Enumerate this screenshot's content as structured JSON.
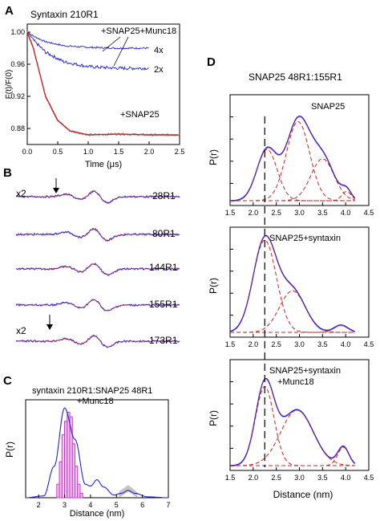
{
  "panels": {
    "A": {
      "letter": "A",
      "title": "Syntaxin 210R1",
      "ylabel": "F(t)/F(0)",
      "xlabel": "Time (μs)",
      "xticks": [
        "0.0",
        "0.5",
        "1.0",
        "1.5",
        "2.0",
        "2.5"
      ],
      "yticks": [
        "0.88",
        "0.92",
        "0.96",
        "1.00"
      ],
      "annotations": [
        "+SNAP25+Munc18",
        "4x",
        "2x",
        "+SNAP25"
      ]
    },
    "B": {
      "letter": "B",
      "labels": [
        "28R1",
        "80R1",
        "144R1",
        "155R1",
        "173R1"
      ],
      "scale_labels": [
        "x2",
        "x2"
      ]
    },
    "C": {
      "letter": "C",
      "title_line1": "syntaxin 210R1:SNAP25 48R1",
      "title_line2": "+Munc18",
      "ylabel": "P(r)",
      "xlabel": "Distance (nm)",
      "xticks": [
        "2",
        "3",
        "4",
        "5",
        "6",
        "7"
      ]
    },
    "D": {
      "letter": "D",
      "title": "SNAP25 48R1:155R1",
      "ylabel": "P(r)",
      "xlabel": "Distance (nm)",
      "xticks": [
        "1.5",
        "2.0",
        "2.5",
        "3.0",
        "3.5",
        "4.0",
        "4.5"
      ],
      "subpanel_labels": [
        "SNAP25",
        "SNAP25+syntaxin",
        "SNAP25+syntaxin",
        "+Munc18"
      ]
    }
  },
  "colors": {
    "fit_blue": "#2222dd",
    "gauss_red": "#cc2222",
    "data_gray": "#888888",
    "hist_magenta": "#cc33cc",
    "hist_fill": "#f3c6f3"
  },
  "chart_data": [
    {
      "type": "line",
      "panel": "A",
      "title": "Syntaxin 210R1",
      "xlabel": "Time (μs)",
      "ylabel": "F(t)/F(0)",
      "xlim": [
        0,
        2.5
      ],
      "ylim": [
        0.86,
        1.01
      ],
      "series": [
        {
          "name": "+SNAP25+Munc18 4x",
          "x": [
            0,
            0.1,
            0.3,
            0.6,
            1.0,
            1.5,
            2.0
          ],
          "y": [
            1.0,
            0.995,
            0.988,
            0.983,
            0.981,
            0.98,
            0.98
          ]
        },
        {
          "name": "+SNAP25+Munc18 2x",
          "x": [
            0,
            0.1,
            0.3,
            0.6,
            1.0,
            1.5,
            2.0
          ],
          "y": [
            1.0,
            0.99,
            0.975,
            0.963,
            0.957,
            0.955,
            0.955
          ]
        },
        {
          "name": "+SNAP25",
          "x": [
            0,
            0.1,
            0.2,
            0.3,
            0.5,
            0.7,
            1.0,
            1.5,
            2.0,
            2.5
          ],
          "y": [
            1.0,
            0.98,
            0.95,
            0.92,
            0.89,
            0.877,
            0.872,
            0.873,
            0.872,
            0.872
          ]
        }
      ]
    },
    {
      "type": "line",
      "panel": "B",
      "series": [
        {
          "name": "28R1"
        },
        {
          "name": "80R1"
        },
        {
          "name": "144R1"
        },
        {
          "name": "155R1"
        },
        {
          "name": "173R1"
        }
      ]
    },
    {
      "type": "bar",
      "panel": "C",
      "title": "syntaxin 210R1:SNAP25 48R1 +Munc18",
      "xlabel": "Distance (nm)",
      "ylabel": "P(r)",
      "xlim": [
        1.5,
        7
      ],
      "categories": [
        2.75,
        2.85,
        2.95,
        3.05,
        3.15,
        3.25,
        3.35,
        3.45,
        3.55,
        3.65
      ],
      "values": [
        0.15,
        0.4,
        0.7,
        0.85,
        0.95,
        0.9,
        0.6,
        0.35,
        0.15,
        0.05
      ],
      "series": [
        {
          "name": "fit",
          "x": [
            1.5,
            2.2,
            2.6,
            3.0,
            3.4,
            3.8,
            4.0,
            4.25,
            4.5,
            4.9,
            5.2,
            5.45,
            5.7,
            6.2,
            7.0
          ],
          "y": [
            0.0,
            0.02,
            0.35,
            1.0,
            0.65,
            0.15,
            0.13,
            0.2,
            0.12,
            0.03,
            0.05,
            0.08,
            0.05,
            0.01,
            0.0
          ]
        }
      ]
    },
    {
      "type": "line",
      "panel": "D",
      "title": "SNAP25 48R1:155R1",
      "xlabel": "Distance (nm)",
      "ylabel": "P(r)",
      "xlim": [
        1.5,
        4.5
      ],
      "reference_line_x": 2.25,
      "subplots": [
        {
          "name": "SNAP25",
          "gaussians": [
            {
              "center": 2.3,
              "height": 0.55,
              "width": 0.22
            },
            {
              "center": 2.97,
              "height": 0.85,
              "width": 0.25
            },
            {
              "center": 3.5,
              "height": 0.45,
              "width": 0.25
            },
            {
              "center": 4.02,
              "height": 0.1,
              "width": 0.1
            }
          ]
        },
        {
          "name": "SNAP25+syntaxin",
          "gaussians": [
            {
              "center": 2.25,
              "height": 1.0,
              "width": 0.25
            },
            {
              "center": 2.85,
              "height": 0.45,
              "width": 0.28
            },
            {
              "center": 3.9,
              "height": 0.08,
              "width": 0.15
            }
          ]
        },
        {
          "name": "SNAP25+syntaxin +Munc18",
          "gaussians": [
            {
              "center": 2.25,
              "height": 0.85,
              "width": 0.2
            },
            {
              "center": 2.95,
              "height": 0.6,
              "width": 0.35
            },
            {
              "center": 3.95,
              "height": 0.2,
              "width": 0.12
            }
          ]
        }
      ]
    }
  ]
}
